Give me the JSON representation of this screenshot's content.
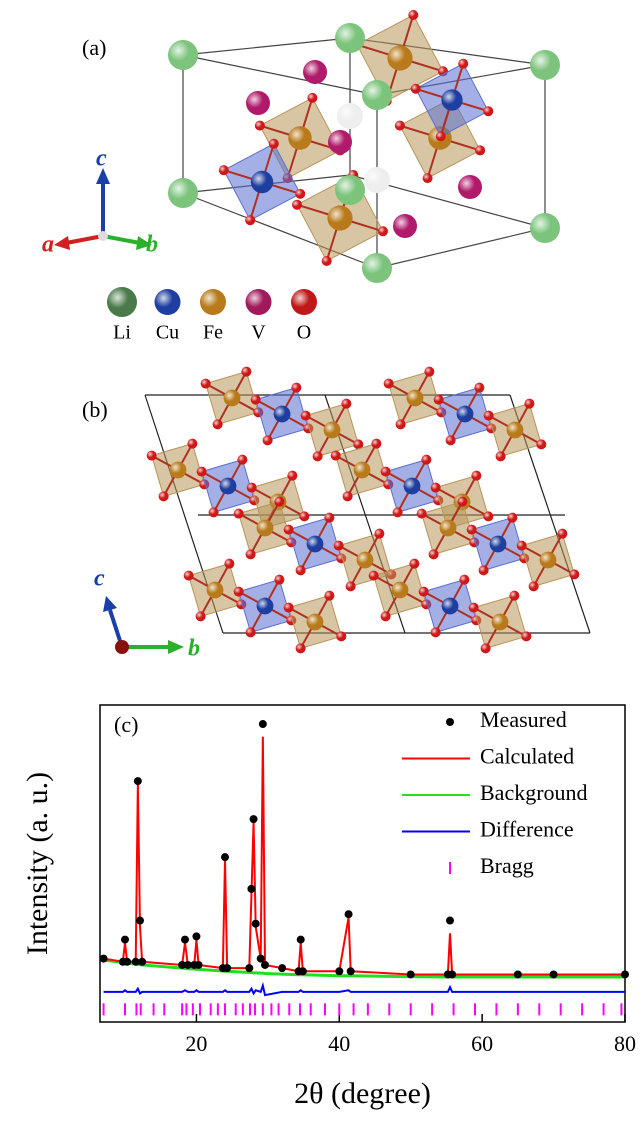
{
  "panel_a": {
    "label": "(a)",
    "axes": [
      "a",
      "b",
      "c"
    ],
    "atoms": [
      {
        "symbol": "Li",
        "color": "#4a7a4a"
      },
      {
        "symbol": "Cu",
        "color": "#1f3fa0"
      },
      {
        "symbol": "Fe",
        "color": "#b87a1a"
      },
      {
        "symbol": "V",
        "color": "#a01a5a"
      },
      {
        "symbol": "O",
        "color": "#c01818"
      }
    ]
  },
  "panel_b": {
    "label": "(b)",
    "axes": [
      "c",
      "b"
    ]
  },
  "chart_data": {
    "type": "line",
    "label": "(c)",
    "x_label": "2θ (degree)",
    "y_label": "Intensity (a. u.)",
    "xlim": [
      6.5,
      80
    ],
    "xticks": [
      20,
      40,
      60,
      80
    ],
    "ylim": [
      0,
      100
    ],
    "x": [
      7,
      9.7,
      10,
      10.3,
      11.5,
      11.8,
      12.1,
      12.4,
      18,
      18.4,
      18.8,
      19.7,
      20,
      20.3,
      23.7,
      24,
      24.3,
      27.4,
      27.7,
      28,
      28.3,
      29,
      29.3,
      29.6,
      32,
      34.3,
      34.6,
      34.9,
      40,
      41.3,
      41.6,
      50,
      55.2,
      55.5,
      55.8,
      65,
      70,
      80
    ],
    "series": [
      {
        "name": "Measured",
        "color": "#000000",
        "marker": "dot",
        "values": [
          20,
          19,
          26,
          19,
          19,
          76,
          32,
          19,
          18,
          26,
          18,
          18,
          27,
          18,
          17,
          52,
          17,
          17,
          42,
          64,
          31,
          20,
          94,
          18,
          17,
          16,
          26,
          16,
          16,
          34,
          16,
          15,
          15,
          32,
          15,
          15,
          15,
          15
        ]
      },
      {
        "name": "Calculated",
        "color": "#ff0000",
        "marker": "line",
        "values": [
          20,
          19,
          25,
          19,
          19,
          75,
          30,
          19,
          18,
          25,
          18,
          18,
          26,
          18,
          17,
          51,
          17,
          17,
          40,
          63,
          30,
          20,
          90,
          18,
          17,
          16,
          25,
          16,
          16,
          33,
          16,
          15,
          15,
          28,
          15,
          15,
          15,
          15
        ]
      },
      {
        "name": "Background",
        "color": "#22dd22",
        "marker": "line",
        "values": [
          19.5,
          18.8,
          18.7,
          18.6,
          18.3,
          18.2,
          18.1,
          18,
          17,
          16.9,
          16.8,
          16.7,
          16.6,
          16.6,
          16.1,
          16,
          16,
          15.6,
          15.6,
          15.5,
          15.5,
          15.4,
          15.4,
          15.3,
          15.1,
          14.9,
          14.9,
          14.9,
          14.6,
          14.6,
          14.6,
          14.3,
          14.2,
          14.2,
          14.2,
          14.2,
          14.2,
          14.2
        ]
      },
      {
        "name": "Difference",
        "color": "#0000ff",
        "marker": "line",
        "values": [
          9.5,
          9.5,
          10,
          9.5,
          9.5,
          10.5,
          9,
          9.5,
          9.5,
          10,
          9.5,
          9.5,
          10,
          9.5,
          9.5,
          10,
          9.5,
          9.5,
          10.5,
          9,
          10,
          9.5,
          11.5,
          8.5,
          9.5,
          9.5,
          10,
          9.5,
          9.5,
          10,
          9.5,
          9.5,
          9.5,
          11,
          9.5,
          9.5,
          9.5,
          9.5
        ]
      },
      {
        "name": "Bragg",
        "color": "#ff00ff",
        "marker": "tick",
        "x": [
          7,
          10,
          11.6,
          12.2,
          14,
          15.5,
          18,
          18.6,
          19.5,
          20.5,
          22,
          23,
          24,
          25.5,
          26.5,
          27.5,
          28.2,
          29.3,
          30.5,
          31.5,
          33,
          34.5,
          36,
          38,
          40,
          42,
          44,
          47,
          50,
          53,
          56,
          59,
          62,
          65,
          68,
          71,
          74,
          77,
          79.5
        ],
        "values": [
          4,
          4,
          4,
          4,
          4,
          4,
          4,
          4,
          4,
          4,
          4,
          4,
          4,
          4,
          4,
          4,
          4,
          4,
          4,
          4,
          4,
          4,
          4,
          4,
          4,
          4,
          4,
          4,
          4,
          4,
          4,
          4,
          4,
          4,
          4,
          4,
          4,
          4,
          4
        ]
      }
    ]
  }
}
